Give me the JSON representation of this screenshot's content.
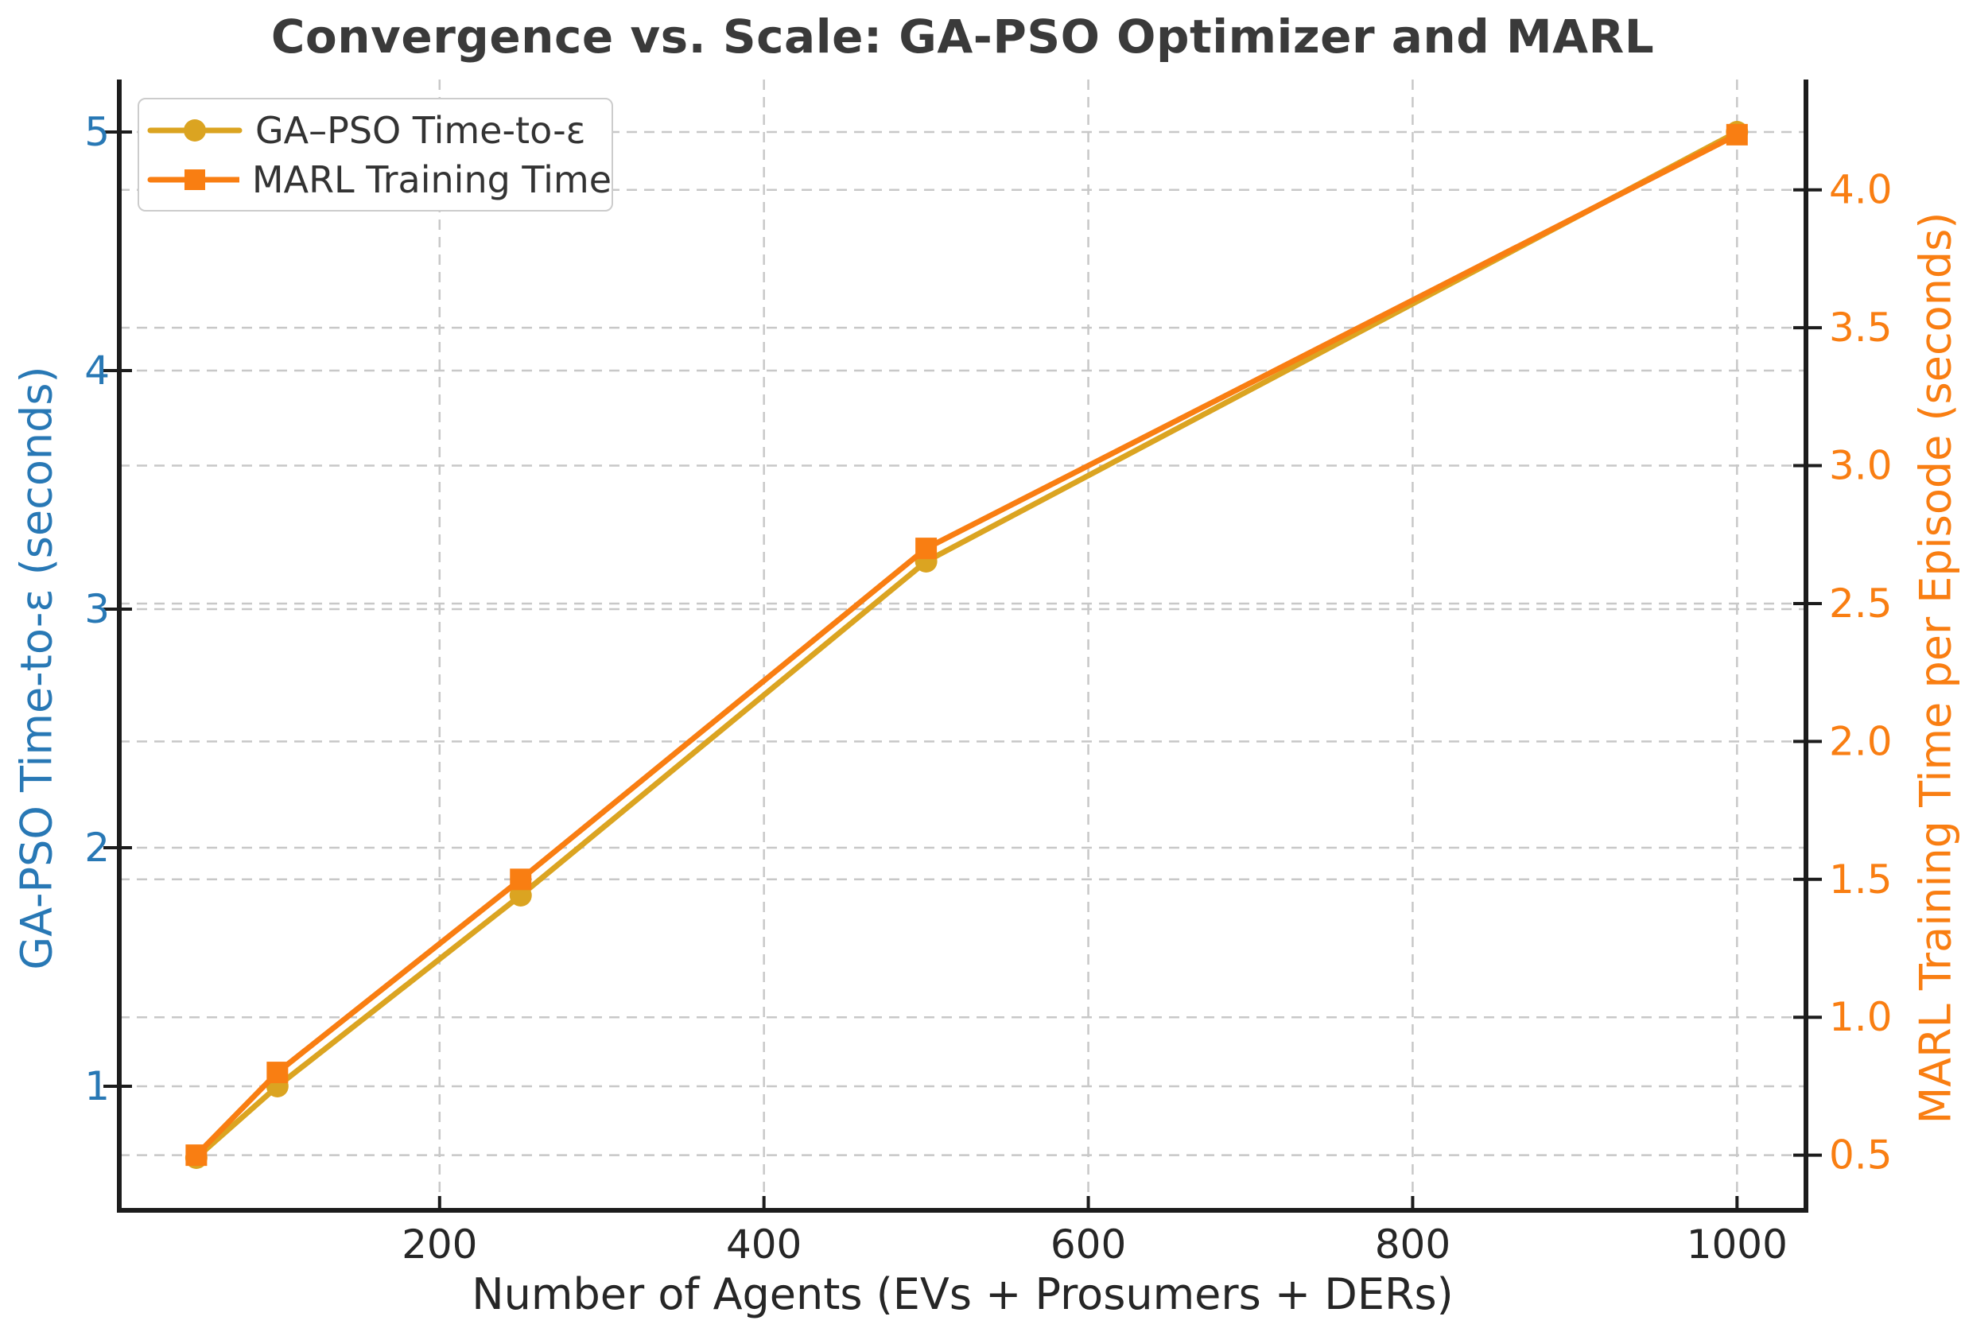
{
  "chart_data": {
    "type": "line",
    "title": "Convergence vs. Scale: GA-PSO Optimizer and MARL",
    "xlabel": "Number of Agents (EVs + Prosumers + DERs)",
    "ylabel_left": "GA-PSO Time-to-ε (seconds)",
    "ylabel_right": "MARL Training Time per Episode (seconds)",
    "x": [
      50,
      100,
      250,
      500,
      1000
    ],
    "series": [
      {
        "name": "GA–PSO Time-to-ε",
        "axis": "left",
        "marker": "circle",
        "color": "#DBA421",
        "values": [
          0.7,
          1.0,
          1.8,
          3.2,
          5.0
        ]
      },
      {
        "name": "MARL Training Time",
        "axis": "right",
        "marker": "square",
        "color": "#F97E12",
        "values": [
          0.5,
          0.8,
          1.5,
          2.7,
          4.2
        ]
      }
    ],
    "xticks": [
      200,
      400,
      600,
      800,
      1000
    ],
    "yticks_left": [
      1,
      2,
      3,
      4,
      5
    ],
    "yticks_right": [
      0.5,
      1.0,
      1.5,
      2.0,
      2.5,
      3.0,
      3.5,
      4.0
    ],
    "xlim": [
      2.5,
      1042.5
    ],
    "ylim_left": [
      0.48,
      5.22
    ],
    "ylim_right": [
      0.3,
      4.4
    ],
    "grid": true,
    "legend_position": "upper left",
    "colors": {
      "left_axis": "#2878B5",
      "right_axis": "#F97E12",
      "title": "#3A3A3A",
      "tick_label": "#262626",
      "grid": "#C8C8C8",
      "spine": "#1C1C1C",
      "legend_border": "#CCCCCC",
      "legend_text": "#333333"
    }
  }
}
